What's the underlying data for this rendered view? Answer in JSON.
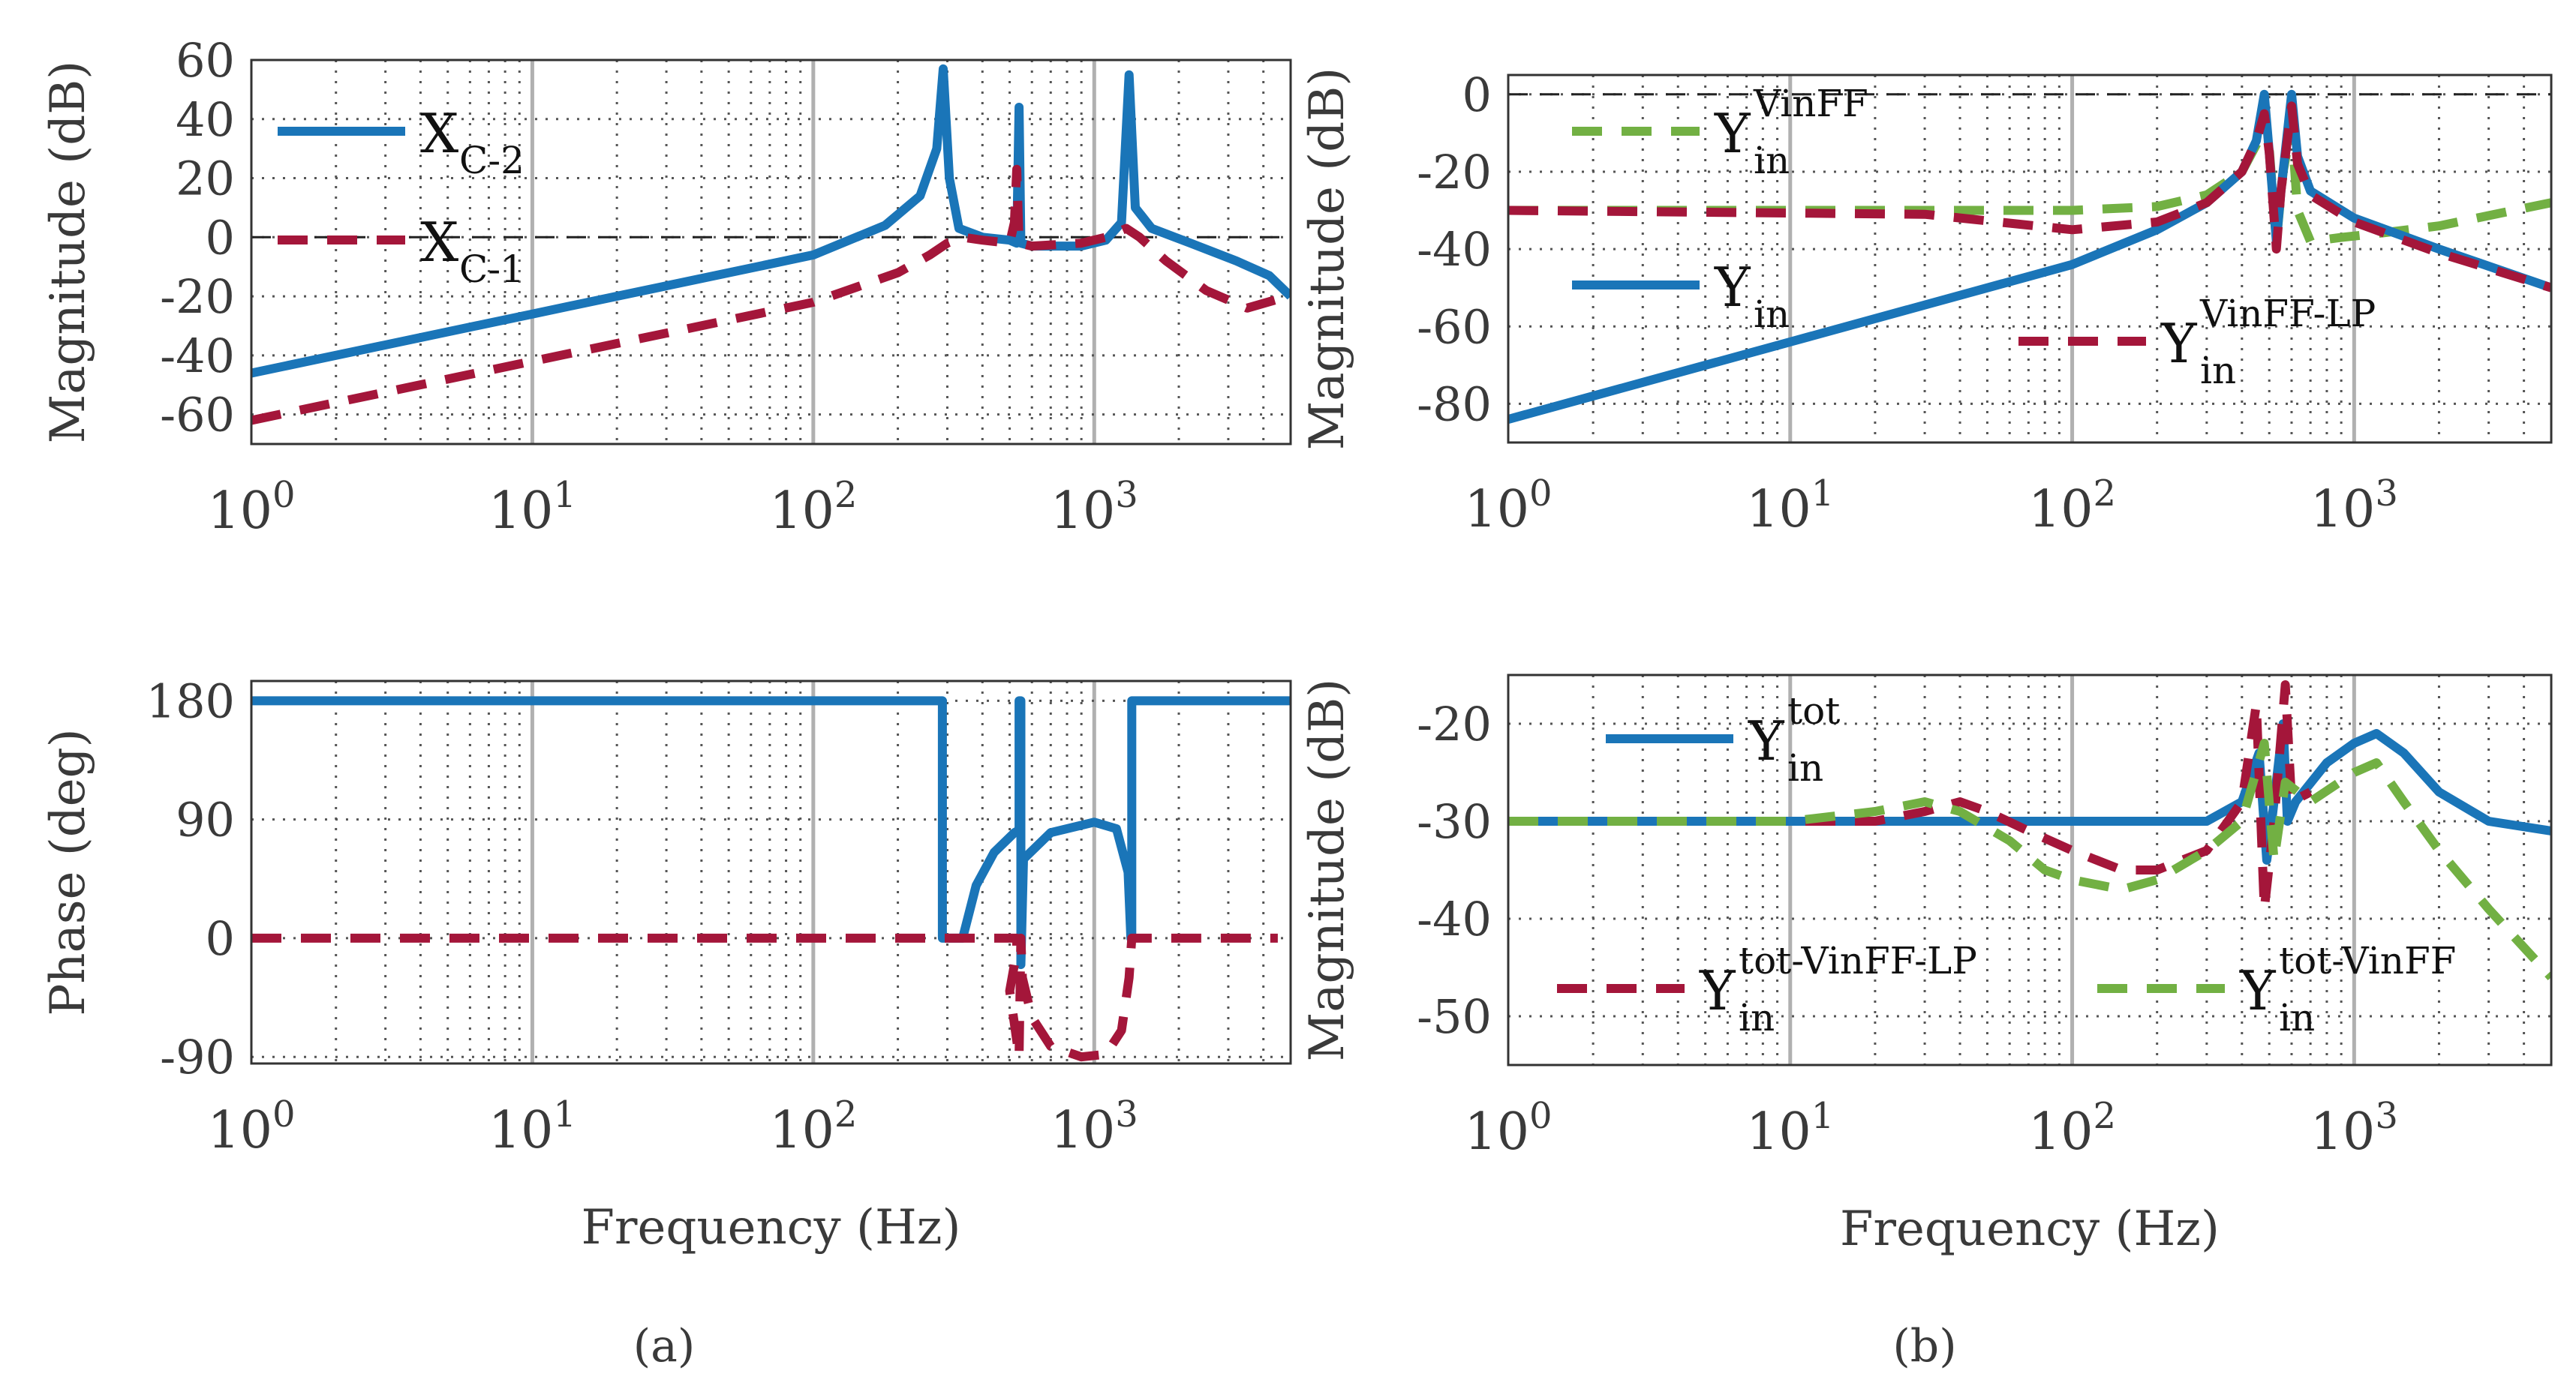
{
  "colors": {
    "blue": "#1a75b8",
    "red": "#a4163a",
    "green": "#72b043",
    "grid": "#555555",
    "major_grid": "#b0b0b0"
  },
  "captions": {
    "a": "(a)",
    "b": "(b)"
  },
  "chart_data": [
    {
      "id": "a_mag",
      "type": "line",
      "xscale": "log",
      "xlim": [
        1,
        5000
      ],
      "ylim": [
        -70,
        60
      ],
      "xticks": [
        1,
        10,
        100,
        1000
      ],
      "xticklabels": [
        [
          "10",
          "0"
        ],
        [
          "10",
          "1"
        ],
        [
          "10",
          "2"
        ],
        [
          "10",
          "3"
        ]
      ],
      "yticks": [
        -60,
        -40,
        -20,
        0,
        20,
        40,
        60
      ],
      "yticklabels": [
        "-60",
        "-40",
        "-20",
        "0",
        "20",
        "40",
        "60"
      ],
      "ylabel": "Magnitude (dB)",
      "xlabel": "",
      "refline": 0,
      "legend": "top-left",
      "series": [
        {
          "key": "blue",
          "name_main": "X",
          "name_sub": "C-2",
          "name_sup": "",
          "style": "solid",
          "points": [
            [
              1,
              -46
            ],
            [
              10,
              -26
            ],
            [
              100,
              -6
            ],
            [
              180,
              4
            ],
            [
              240,
              14
            ],
            [
              275,
              30
            ],
            [
              290,
              57
            ],
            [
              305,
              20
            ],
            [
              330,
              3
            ],
            [
              400,
              0
            ],
            [
              500,
              -1
            ],
            [
              530,
              -2
            ],
            [
              540,
              44
            ],
            [
              548,
              -2
            ],
            [
              600,
              -3
            ],
            [
              900,
              -3
            ],
            [
              1100,
              -1
            ],
            [
              1250,
              5
            ],
            [
              1330,
              55
            ],
            [
              1400,
              10
            ],
            [
              1600,
              3
            ],
            [
              2200,
              -2
            ],
            [
              3200,
              -8
            ],
            [
              4200,
              -13
            ],
            [
              5000,
              -20
            ]
          ]
        },
        {
          "key": "red",
          "name_main": "X",
          "name_sub": "C-1",
          "name_sup": "",
          "style": "dashed",
          "points": [
            [
              1,
              -62
            ],
            [
              10,
              -42
            ],
            [
              100,
              -22
            ],
            [
              200,
              -12
            ],
            [
              260,
              -6
            ],
            [
              300,
              -2
            ],
            [
              340,
              0
            ],
            [
              400,
              -1
            ],
            [
              500,
              -2
            ],
            [
              520,
              5
            ],
            [
              530,
              23
            ],
            [
              540,
              -2
            ],
            [
              600,
              -3
            ],
            [
              900,
              -2
            ],
            [
              1100,
              0
            ],
            [
              1300,
              3
            ],
            [
              1450,
              0
            ],
            [
              1800,
              -8
            ],
            [
              2500,
              -18
            ],
            [
              3500,
              -24
            ],
            [
              4500,
              -21
            ]
          ]
        }
      ]
    },
    {
      "id": "a_phase",
      "type": "line",
      "xscale": "log",
      "xlim": [
        1,
        5000
      ],
      "ylim": [
        -95,
        195
      ],
      "xticks": [
        1,
        10,
        100,
        1000
      ],
      "xticklabels": [
        [
          "10",
          "0"
        ],
        [
          "10",
          "1"
        ],
        [
          "10",
          "2"
        ],
        [
          "10",
          "3"
        ]
      ],
      "yticks": [
        -90,
        0,
        90,
        180
      ],
      "yticklabels": [
        "-90",
        "0",
        "90",
        "180"
      ],
      "ylabel": "Phase (deg)",
      "xlabel": "Frequency (Hz)",
      "series": [
        {
          "key": "blue",
          "style": "solid",
          "points": [
            [
              1,
              180
            ],
            [
              288,
              180
            ],
            [
              288,
              0
            ],
            [
              340,
              0
            ],
            [
              380,
              40
            ],
            [
              440,
              65
            ],
            [
              520,
              80
            ],
            [
              540,
              82
            ],
            [
              540,
              180
            ],
            [
              548,
              180
            ],
            [
              548,
              -20
            ],
            [
              560,
              60
            ],
            [
              700,
              80
            ],
            [
              1000,
              88
            ],
            [
              1200,
              83
            ],
            [
              1320,
              50
            ],
            [
              1350,
              0
            ],
            [
              1360,
              0
            ],
            [
              1360,
              180
            ],
            [
              5000,
              180
            ]
          ]
        },
        {
          "key": "red",
          "style": "dashed",
          "points": [
            [
              1,
              0
            ],
            [
              530,
              0
            ],
            [
              530,
              -10
            ],
            [
              500,
              -40
            ],
            [
              520,
              -65
            ],
            [
              540,
              -90
            ],
            [
              548,
              0
            ],
            [
              555,
              -30
            ],
            [
              600,
              -60
            ],
            [
              700,
              -82
            ],
            [
              900,
              -90
            ],
            [
              1100,
              -88
            ],
            [
              1250,
              -70
            ],
            [
              1330,
              -30
            ],
            [
              1360,
              0
            ],
            [
              4500,
              0
            ]
          ]
        }
      ]
    },
    {
      "id": "b_mag_top",
      "type": "line",
      "xscale": "log",
      "xlim": [
        1,
        5000
      ],
      "ylim": [
        -90,
        5
      ],
      "xticks": [
        1,
        10,
        100,
        1000
      ],
      "xticklabels": [
        [
          "10",
          "0"
        ],
        [
          "10",
          "1"
        ],
        [
          "10",
          "2"
        ],
        [
          "10",
          "3"
        ]
      ],
      "yticks": [
        -80,
        -60,
        -40,
        -20,
        0
      ],
      "yticklabels": [
        "-80",
        "-60",
        "-40",
        "-20",
        "0"
      ],
      "ylabel": "Magnitude (dB)",
      "xlabel": "",
      "refline": 0,
      "series": [
        {
          "key": "green",
          "name_main": "Y",
          "name_sub": "in",
          "name_sup": "VinFF",
          "style": "dashed",
          "points": [
            [
              1,
              -30
            ],
            [
              100,
              -30
            ],
            [
              200,
              -29
            ],
            [
              300,
              -26
            ],
            [
              400,
              -20
            ],
            [
              450,
              -13
            ],
            [
              480,
              -5
            ],
            [
              500,
              -14
            ],
            [
              530,
              -38
            ],
            [
              560,
              -20
            ],
            [
              600,
              -8
            ],
            [
              630,
              -30
            ],
            [
              700,
              -38
            ],
            [
              900,
              -37
            ],
            [
              1200,
              -36
            ],
            [
              2000,
              -34
            ],
            [
              5000,
              -28
            ]
          ]
        },
        {
          "key": "blue",
          "name_main": "Y",
          "name_sub": "in",
          "name_sup": "",
          "style": "solid",
          "points": [
            [
              1,
              -84
            ],
            [
              10,
              -64
            ],
            [
              100,
              -44
            ],
            [
              200,
              -35
            ],
            [
              300,
              -28
            ],
            [
              400,
              -20
            ],
            [
              450,
              -12
            ],
            [
              480,
              0
            ],
            [
              500,
              -15
            ],
            [
              530,
              -38
            ],
            [
              550,
              -25
            ],
            [
              600,
              0
            ],
            [
              630,
              -16
            ],
            [
              700,
              -25
            ],
            [
              1000,
              -32
            ],
            [
              2000,
              -40
            ],
            [
              5000,
              -50
            ]
          ]
        },
        {
          "key": "red",
          "name_main": "Y",
          "name_sub": "in",
          "name_sup": "VinFF-LP",
          "style": "dashed",
          "points": [
            [
              1,
              -30
            ],
            [
              30,
              -31
            ],
            [
              100,
              -35
            ],
            [
              200,
              -33
            ],
            [
              300,
              -28
            ],
            [
              400,
              -20
            ],
            [
              450,
              -12
            ],
            [
              480,
              -5
            ],
            [
              500,
              -15
            ],
            [
              530,
              -40
            ],
            [
              550,
              -25
            ],
            [
              600,
              -3
            ],
            [
              630,
              -18
            ],
            [
              700,
              -26
            ],
            [
              1000,
              -33
            ],
            [
              2000,
              -41
            ],
            [
              5000,
              -50
            ]
          ]
        }
      ]
    },
    {
      "id": "b_mag_bottom",
      "type": "line",
      "xscale": "log",
      "xlim": [
        1,
        5000
      ],
      "ylim": [
        -55,
        -15
      ],
      "xticks": [
        1,
        10,
        100,
        1000
      ],
      "xticklabels": [
        [
          "10",
          "0"
        ],
        [
          "10",
          "1"
        ],
        [
          "10",
          "2"
        ],
        [
          "10",
          "3"
        ]
      ],
      "yticks": [
        -50,
        -40,
        -30,
        -20
      ],
      "yticklabels": [
        "-50",
        "-40",
        "-30",
        "-20"
      ],
      "ylabel": "Magnitude (dB)",
      "xlabel": "Frequency (Hz)",
      "series": [
        {
          "key": "blue",
          "name_main": "Y",
          "name_sub": "in",
          "name_sup": "tot",
          "style": "solid",
          "points": [
            [
              1,
              -30
            ],
            [
              100,
              -30
            ],
            [
              300,
              -30
            ],
            [
              400,
              -28
            ],
            [
              460,
              -23
            ],
            [
              490,
              -34
            ],
            [
              510,
              -30
            ],
            [
              560,
              -20
            ],
            [
              580,
              -30
            ],
            [
              620,
              -28
            ],
            [
              800,
              -24
            ],
            [
              1000,
              -22
            ],
            [
              1200,
              -21
            ],
            [
              1500,
              -23
            ],
            [
              2000,
              -27
            ],
            [
              3000,
              -30
            ],
            [
              5000,
              -31
            ]
          ]
        },
        {
          "key": "red",
          "name_main": "Y",
          "name_sub": "in",
          "name_sup": "tot-VinFF-LP",
          "style": "dashed",
          "points": [
            [
              1,
              -30
            ],
            [
              10,
              -30
            ],
            [
              20,
              -30
            ],
            [
              30,
              -29
            ],
            [
              40,
              -28
            ],
            [
              50,
              -29
            ],
            [
              70,
              -31
            ],
            [
              100,
              -33
            ],
            [
              150,
              -35
            ],
            [
              200,
              -35
            ],
            [
              300,
              -33
            ],
            [
              400,
              -28
            ],
            [
              450,
              -18
            ],
            [
              480,
              -39
            ],
            [
              520,
              -30
            ],
            [
              570,
              -16
            ],
            [
              600,
              -28
            ],
            [
              700,
              -27
            ]
          ]
        },
        {
          "key": "green",
          "name_main": "Y",
          "name_sub": "in",
          "name_sup": "tot-VinFF",
          "style": "dashed",
          "points": [
            [
              1,
              -30
            ],
            [
              10,
              -30
            ],
            [
              20,
              -29
            ],
            [
              30,
              -28
            ],
            [
              40,
              -29
            ],
            [
              60,
              -32
            ],
            [
              80,
              -35
            ],
            [
              100,
              -36
            ],
            [
              150,
              -37
            ],
            [
              200,
              -36
            ],
            [
              300,
              -33
            ],
            [
              400,
              -30
            ],
            [
              480,
              -22
            ],
            [
              520,
              -34
            ],
            [
              570,
              -26
            ],
            [
              700,
              -28
            ],
            [
              1000,
              -25
            ],
            [
              1200,
              -24
            ],
            [
              1500,
              -28
            ],
            [
              2000,
              -33
            ],
            [
              3000,
              -39
            ],
            [
              5000,
              -46
            ]
          ]
        }
      ]
    }
  ]
}
